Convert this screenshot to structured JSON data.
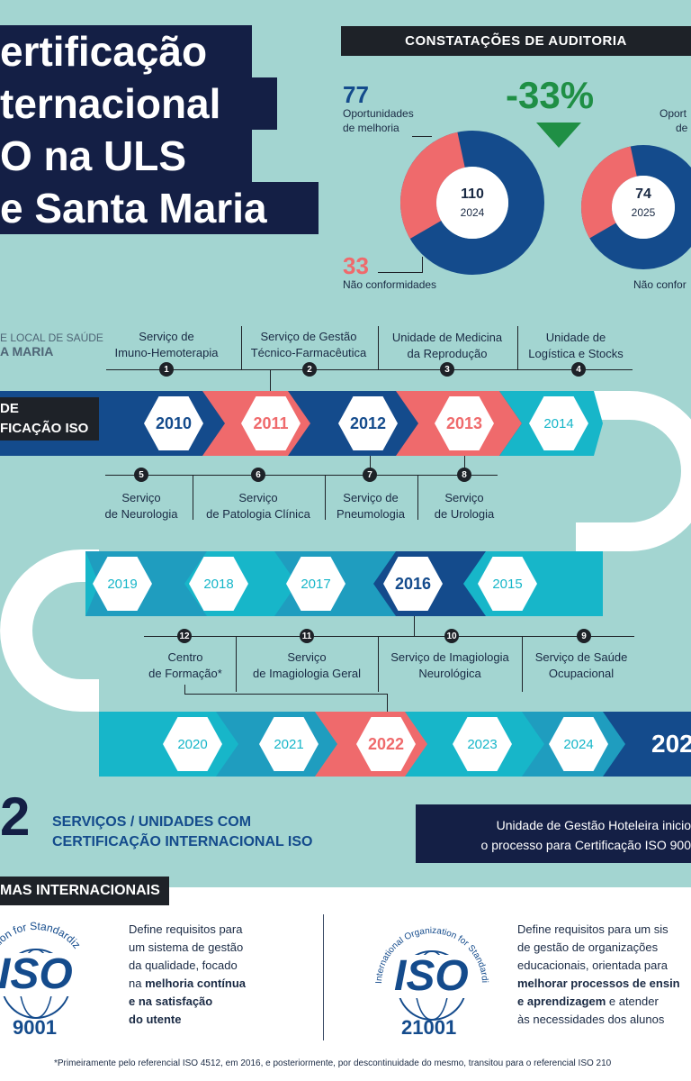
{
  "title": {
    "lines": [
      "ertificação",
      "ternacional",
      "O na ULS",
      "e Santa Maria"
    ]
  },
  "logo": {
    "line1": "E LOCAL DE SAÚDE",
    "line2": "A MARIA"
  },
  "audit": {
    "header": "CONSTATAÇÕES DE AUDITORIA",
    "change": "-33%",
    "left": {
      "opportunities_value": "77",
      "opportunities_label_1": "Oportunidades",
      "opportunities_label_2": "de melhoria",
      "total": "110",
      "year": "2024",
      "nonconf_value": "33",
      "nonconf_label": "Não conformidades",
      "opportunities_share": 0.7,
      "nonconf_share": 0.3
    },
    "right": {
      "opportunities_label_1": "Oport",
      "opportunities_label_2": "de",
      "total": "74",
      "year": "2025",
      "nonconf_label": "Não confor",
      "opportunities_share": 0.7,
      "nonconf_share": 0.3
    },
    "colors": {
      "navy": "#144b8c",
      "coral": "#ef6a6c",
      "green": "#1f8f45"
    }
  },
  "timeline": {
    "band_label_1": "DE",
    "band_label_2": "FICAÇÃO ISO",
    "row1_years": [
      "2010",
      "2011",
      "2012",
      "2013",
      "2014"
    ],
    "row2_years": [
      "2019",
      "2018",
      "2017",
      "2016",
      "2015"
    ],
    "row3_years": [
      "2020",
      "2021",
      "2022",
      "2023",
      "2024"
    ],
    "row3_end": "202",
    "services": [
      {
        "n": "1",
        "l1": "Serviço de",
        "l2": "Imuno-Hemoterapia"
      },
      {
        "n": "2",
        "l1": "Serviço de Gestão",
        "l2": "Técnico-Farmacêutica"
      },
      {
        "n": "3",
        "l1": "Unidade de Medicina",
        "l2": "da Reprodução"
      },
      {
        "n": "4",
        "l1": "Unidade de",
        "l2": "Logística e Stocks"
      },
      {
        "n": "5",
        "l1": "Serviço",
        "l2": "de Neurologia"
      },
      {
        "n": "6",
        "l1": "Serviço",
        "l2": "de Patologia Clínica"
      },
      {
        "n": "7",
        "l1": "Serviço de",
        "l2": "Pneumologia"
      },
      {
        "n": "8",
        "l1": "Serviço",
        "l2": "de Urologia"
      },
      {
        "n": "9",
        "l1": "Serviço de Saúde",
        "l2": "Ocupacional"
      },
      {
        "n": "10",
        "l1": "Serviço de Imagiologia",
        "l2": "Neurológica"
      },
      {
        "n": "11",
        "l1": "Serviço",
        "l2": "de Imagiologia Geral"
      },
      {
        "n": "12",
        "l1": "Centro",
        "l2": "de Formação*"
      }
    ]
  },
  "summary": {
    "count": "2",
    "text_1": "SERVIÇOS / UNIDADES COM",
    "text_2": "CERTIFICAÇÃO INTERNACIONAL ISO",
    "box_1": "Unidade de Gestão Hoteleira inicio",
    "box_2": "o processo para Certificação ISO 900"
  },
  "norms": {
    "header": "MAS INTERNACIONAIS",
    "iso9001": {
      "ring": "rganization for Standardiz",
      "logo": "ISO",
      "code": "9001",
      "t1": "Define requisitos para",
      "t2": "um sistema de gestão",
      "t3": "da qualidade, focado",
      "t4a": "na ",
      "t4b": "melhoria contínua",
      "t5": "e na satisfação",
      "t6": "do utente"
    },
    "iso21001": {
      "ring": "International Organization for Standardization",
      "logo": "ISO",
      "code": "21001",
      "t1": "Define requisitos para um sis",
      "t2": "de gestão de organizações",
      "t3": "educacionais, orientada para",
      "t4": "melhorar processos de ensin",
      "t5a": "e aprendizagem",
      "t5b": " e atender",
      "t6": "às necessidades dos alunos"
    }
  },
  "footnote": "*Primeiramente pelo referencial ISO 4512, em 2016, e posteriormente, por descontinuidade do mesmo, transitou para o referencial ISO 210"
}
